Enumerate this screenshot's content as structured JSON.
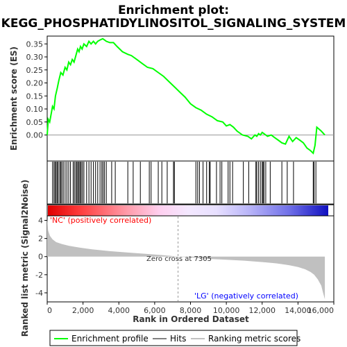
{
  "title_line1": "Enrichment plot:",
  "title_line2": "KEGG_PHOSPHATIDYLINOSITOL_SIGNALING_SYSTEM",
  "colors": {
    "profile": "#00ff00",
    "hits": "#000000",
    "ranked_fill": "#c0c0c0",
    "pos_label": "#ff0000",
    "neg_label": "#0000ff"
  },
  "chart_data": [
    {
      "type": "line",
      "name": "enrichment-profile",
      "ylabel": "Enrichment score (ES)",
      "ylim": [
        -0.1,
        0.38
      ],
      "yticks": [
        "0.00",
        "0.05",
        "0.10",
        "0.15",
        "0.20",
        "0.25",
        "0.30",
        "0.35"
      ],
      "xlim": [
        0,
        16000
      ],
      "series": [
        {
          "name": "Enrichment profile",
          "x": [
            0,
            60,
            140,
            300,
            380,
            460,
            560,
            650,
            760,
            880,
            1000,
            1100,
            1200,
            1300,
            1400,
            1500,
            1620,
            1700,
            1780,
            1860,
            1950,
            2050,
            2200,
            2330,
            2450,
            2580,
            2700,
            2820,
            2950,
            3100,
            3200,
            3300,
            3500,
            3700,
            3900,
            4200,
            4500,
            4700,
            5000,
            5300,
            5600,
            5900,
            6200,
            6500,
            6800,
            7100,
            7400,
            7700,
            8000,
            8300,
            8600,
            8900,
            9200,
            9500,
            9800,
            10000,
            10200,
            10400,
            10600,
            10900,
            11200,
            11400,
            11600,
            11700,
            11800,
            11900,
            12000,
            12100,
            12300,
            12500,
            12700,
            12900,
            13100,
            13300,
            13500,
            13700,
            13900,
            14100,
            14300,
            14500,
            14700,
            14850,
            14950,
            15050,
            15300,
            15500
          ],
          "y": [
            0.0,
            0.06,
            0.05,
            0.11,
            0.1,
            0.15,
            0.18,
            0.21,
            0.24,
            0.23,
            0.26,
            0.25,
            0.28,
            0.27,
            0.29,
            0.28,
            0.31,
            0.33,
            0.32,
            0.34,
            0.33,
            0.35,
            0.34,
            0.36,
            0.35,
            0.36,
            0.35,
            0.36,
            0.365,
            0.37,
            0.365,
            0.36,
            0.355,
            0.355,
            0.34,
            0.32,
            0.31,
            0.305,
            0.29,
            0.275,
            0.26,
            0.255,
            0.24,
            0.225,
            0.205,
            0.185,
            0.165,
            0.145,
            0.12,
            0.105,
            0.095,
            0.08,
            0.07,
            0.055,
            0.05,
            0.035,
            0.04,
            0.03,
            0.015,
            0.0,
            -0.005,
            -0.015,
            0.0,
            -0.005,
            0.005,
            0.0,
            0.01,
            0.005,
            -0.005,
            0.0,
            -0.01,
            -0.02,
            -0.03,
            -0.035,
            -0.005,
            -0.025,
            -0.01,
            -0.02,
            -0.03,
            -0.05,
            -0.06,
            -0.07,
            -0.04,
            0.03,
            0.015,
            0.0
          ]
        }
      ]
    },
    {
      "type": "scatter",
      "name": "hits",
      "xlim": [
        0,
        16000
      ],
      "hit_ranks": [
        300,
        380,
        440,
        500,
        560,
        620,
        700,
        760,
        820,
        900,
        1000,
        1100,
        1200,
        1300,
        1450,
        1520,
        1600,
        1660,
        1720,
        1780,
        1840,
        1900,
        1970,
        2050,
        2200,
        2330,
        2450,
        2580,
        2700,
        2820,
        2950,
        3050,
        3120,
        3200,
        3300,
        3600,
        3800,
        4500,
        4800,
        5200,
        5700,
        5800,
        6200,
        6400,
        6700,
        7050,
        7100,
        8300,
        8400,
        8500,
        8700,
        8900,
        9050,
        9100,
        9450,
        9650,
        9750,
        10100,
        10200,
        10350,
        10950,
        11250,
        11650,
        11700,
        11800,
        11900,
        12000,
        12050,
        12100,
        12200,
        12450,
        13100,
        13400,
        13750,
        14850,
        14900,
        15000
      ]
    },
    {
      "type": "area",
      "name": "ranked-list-metric",
      "ylabel": "Ranked list metric (Signal2Noise)",
      "xlabel": "Rank in Ordered Dataset",
      "ylim": [
        -5,
        4.5
      ],
      "yticks": [
        "-4",
        "-2",
        "0",
        "2",
        "4"
      ],
      "xlim": [
        0,
        16000
      ],
      "xticks": [
        "0",
        "2,000",
        "4,000",
        "6,000",
        "8,000",
        "10,000",
        "12,000",
        "14,000",
        "16,000"
      ],
      "x": [
        0,
        50,
        150,
        300,
        500,
        800,
        1200,
        1800,
        2500,
        3500,
        4500,
        5500,
        6500,
        7305,
        8000,
        9000,
        10000,
        11000,
        12000,
        12800,
        13500,
        14000,
        14400,
        14700,
        14900,
        15100,
        15300,
        15400,
        15500
      ],
      "y": [
        4.2,
        2.9,
        2.3,
        1.9,
        1.6,
        1.4,
        1.2,
        1.0,
        0.8,
        0.6,
        0.45,
        0.3,
        0.15,
        0.0,
        -0.1,
        -0.25,
        -0.35,
        -0.45,
        -0.6,
        -0.75,
        -0.95,
        -1.15,
        -1.4,
        -1.7,
        -2.0,
        -2.5,
        -3.2,
        -4.0,
        -4.7
      ]
    }
  ],
  "annotations": {
    "pos_label": "'NC' (positively correlated)",
    "neg_label": "'LG' (negatively correlated)",
    "zero_cross": "Zero cross at 7305",
    "zero_cross_rank": 7305
  },
  "legend": {
    "profile": "Enrichment profile",
    "hits": "Hits",
    "ranked": "Ranking metric scores"
  }
}
